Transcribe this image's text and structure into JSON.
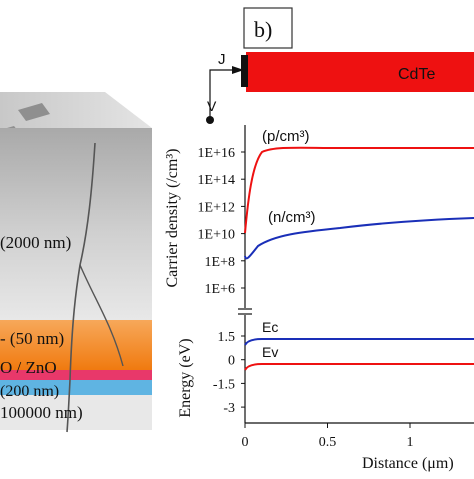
{
  "left_panel": {
    "layer_labels": [
      "(2000 nm)",
      "- (50 nm)",
      "O / ZnO",
      "(200 nm)",
      "100000 nm)"
    ]
  },
  "right_panel": {
    "panel_label": "b)",
    "top_bar": {
      "material_label": "CdTe",
      "color": "#ee1111"
    },
    "circuit": {
      "current_label": "J",
      "voltage_label": "V"
    },
    "carrier_plot": {
      "ylabel": "Carrier density (/cm³)",
      "yticks": [
        "1E+16",
        "1E+14",
        "1E+12",
        "1E+10",
        "1E+8",
        "1E+6"
      ],
      "p_label": "(p/cm³)",
      "n_label": "(n/cm³)",
      "p_color": "#ee1111",
      "n_color": "#1a2fb8"
    },
    "energy_plot": {
      "ylabel": "Energy (eV)",
      "yticks": [
        "1.5",
        "0",
        "-1.5",
        "-3"
      ],
      "ec_label": "Ec",
      "ev_label": "Ev"
    },
    "x_axis": {
      "xlabel": "Distance (μm)",
      "xticks": [
        "0",
        "0.5",
        "1"
      ]
    }
  }
}
